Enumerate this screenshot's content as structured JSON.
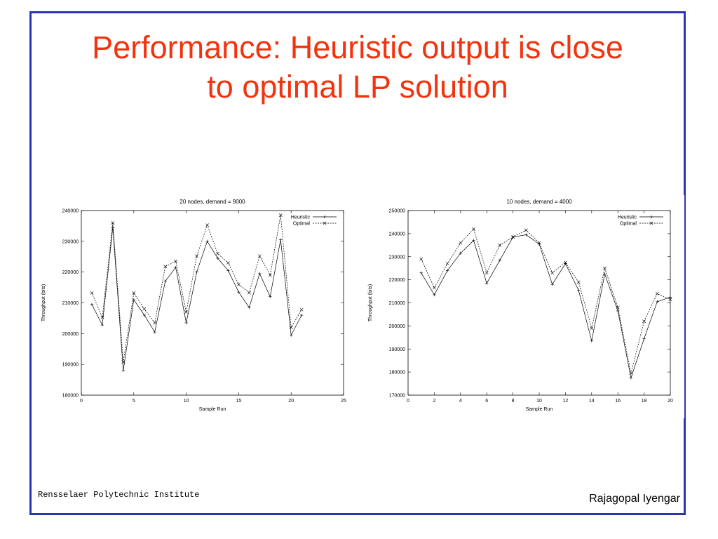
{
  "slide": {
    "title_line1": "Performance: Heuristic output is close",
    "title_line2": "to optimal LP solution",
    "footer_left": "Rensselaer Polytechnic Institute",
    "footer_right": "Rajagopal Iyengar",
    "colors": {
      "title": "#f2330f",
      "frame": "#2a35b4"
    }
  },
  "chart_data": [
    {
      "type": "line",
      "title": "20 nodes, demand = 9000",
      "xlabel": "Sample Run",
      "ylabel": "Throughput (bits)",
      "xlim": [
        0,
        25
      ],
      "ylim": [
        180000,
        240000
      ],
      "xticks": [
        0,
        5,
        10,
        15,
        20,
        25
      ],
      "yticks": [
        180000,
        190000,
        200000,
        210000,
        220000,
        230000,
        240000
      ],
      "legend_position": "top-right",
      "x": [
        1,
        2,
        3,
        4,
        5,
        6,
        7,
        8,
        9,
        10,
        11,
        12,
        13,
        14,
        15,
        16,
        17,
        18,
        19,
        20,
        21
      ],
      "series": [
        {
          "name": "Heuristic",
          "marker": "+",
          "style": "solid",
          "values": [
            209500,
            202800,
            234500,
            188000,
            211000,
            206000,
            200500,
            217000,
            221500,
            203500,
            220000,
            230000,
            224500,
            220500,
            213500,
            208500,
            219500,
            212000,
            230500,
            199500,
            206000
          ]
        },
        {
          "name": "Optimal",
          "marker": "x",
          "style": "dashed",
          "values": [
            213200,
            205300,
            236000,
            190800,
            213200,
            208000,
            203500,
            221800,
            223500,
            207000,
            225200,
            235300,
            226000,
            223000,
            216000,
            213300,
            225200,
            219000,
            238500,
            202000,
            207800
          ]
        }
      ]
    },
    {
      "type": "line",
      "title": "10 nodes, demand = 4000",
      "xlabel": "Sample Run",
      "ylabel": "Throughput (bits)",
      "xlim": [
        0,
        20
      ],
      "ylim": [
        170000,
        250000
      ],
      "xticks": [
        0,
        2,
        4,
        6,
        8,
        10,
        12,
        14,
        16,
        18,
        20
      ],
      "yticks": [
        170000,
        180000,
        190000,
        200000,
        210000,
        220000,
        230000,
        240000,
        250000
      ],
      "legend_position": "top-right",
      "x": [
        1,
        2,
        3,
        4,
        5,
        6,
        7,
        8,
        9,
        10,
        11,
        12,
        13,
        14,
        15,
        16,
        17,
        18,
        19,
        20
      ],
      "series": [
        {
          "name": "Heuristic",
          "marker": "+",
          "style": "solid",
          "values": [
            223000,
            213500,
            224000,
            231500,
            237000,
            218500,
            228500,
            238500,
            239500,
            235500,
            218000,
            227000,
            215500,
            193500,
            222500,
            206500,
            177500,
            194500,
            210500,
            212500
          ]
        },
        {
          "name": "Optimal",
          "marker": "x",
          "style": "dashed",
          "values": [
            229000,
            216500,
            227000,
            236000,
            242000,
            223000,
            235000,
            238500,
            241500,
            236000,
            223000,
            227500,
            219000,
            199000,
            225000,
            208000,
            179500,
            202000,
            214000,
            211500
          ]
        }
      ]
    }
  ]
}
